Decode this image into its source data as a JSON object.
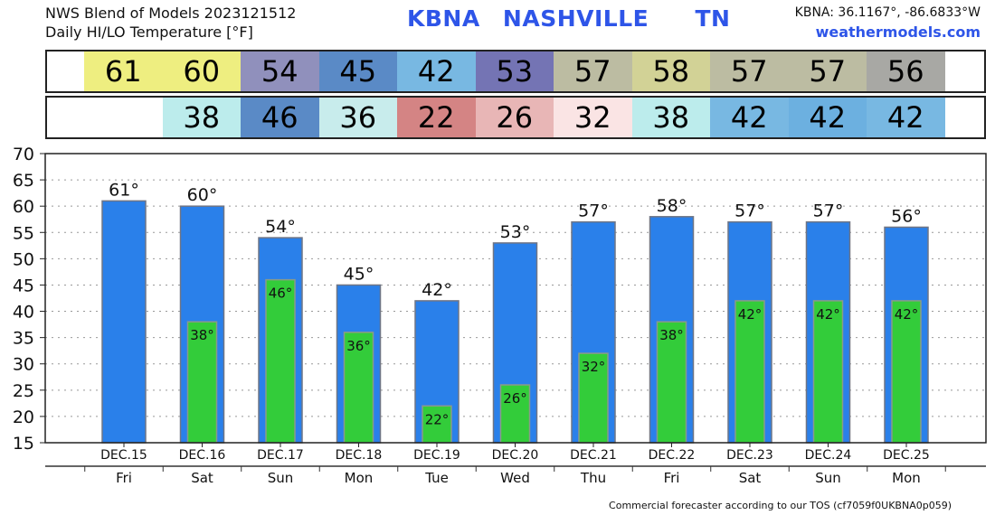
{
  "header": {
    "title_line1": "NWS Blend of Models 2023121512",
    "title_line2": "Daily HI/LO Temperature [°F]",
    "station_id": "KBNA",
    "station_name": "NASHVILLE",
    "state": "TN",
    "coords": "KBNA: 36.1167°, -86.6833°W",
    "site": "weathermodels.com"
  },
  "hi_strip": [
    {
      "value": "61",
      "color": "#eeee80"
    },
    {
      "value": "60",
      "color": "#eeee80"
    },
    {
      "value": "54",
      "color": "#9090bc"
    },
    {
      "value": "45",
      "color": "#5a8ac6"
    },
    {
      "value": "42",
      "color": "#78b8e2"
    },
    {
      "value": "53",
      "color": "#7474b4"
    },
    {
      "value": "57",
      "color": "#bcbca2"
    },
    {
      "value": "58",
      "color": "#d2d296"
    },
    {
      "value": "57",
      "color": "#bcbca2"
    },
    {
      "value": "57",
      "color": "#bcbca2"
    },
    {
      "value": "56",
      "color": "#a8a8a4"
    }
  ],
  "lo_strip": [
    {
      "value": "",
      "color": "#ffffff"
    },
    {
      "value": "38",
      "color": "#bcecec"
    },
    {
      "value": "46",
      "color": "#5a8ac6"
    },
    {
      "value": "36",
      "color": "#c8ecec"
    },
    {
      "value": "22",
      "color": "#d48484"
    },
    {
      "value": "26",
      "color": "#e8b6b6"
    },
    {
      "value": "32",
      "color": "#fae4e4"
    },
    {
      "value": "38",
      "color": "#bcecec"
    },
    {
      "value": "42",
      "color": "#78b8e2"
    },
    {
      "value": "42",
      "color": "#6cb0e0"
    },
    {
      "value": "42",
      "color": "#78b8e2"
    }
  ],
  "chart_data": {
    "type": "bar",
    "categories": [
      "DEC.15",
      "DEC.16",
      "DEC.17",
      "DEC.18",
      "DEC.19",
      "DEC.20",
      "DEC.21",
      "DEC.22",
      "DEC.23",
      "DEC.24",
      "DEC.25"
    ],
    "days": [
      "Fri",
      "Sat",
      "Sun",
      "Mon",
      "Tue",
      "Wed",
      "Thu",
      "Fri",
      "Sat",
      "Sun",
      "Mon"
    ],
    "series": [
      {
        "values": [
          61,
          60,
          54,
          45,
          42,
          53,
          57,
          58,
          57,
          57,
          56
        ],
        "color": "#2a80ea"
      },
      {
        "values": [
          null,
          38,
          46,
          36,
          22,
          26,
          32,
          38,
          42,
          42,
          42
        ],
        "color": "#33cc3a"
      }
    ],
    "hi_labels": [
      "61°",
      "60°",
      "54°",
      "45°",
      "42°",
      "53°",
      "57°",
      "58°",
      "57°",
      "57°",
      "56°"
    ],
    "lo_labels": [
      "",
      "38°",
      "46°",
      "36°",
      "22°",
      "26°",
      "32°",
      "38°",
      "42°",
      "42°",
      "42°"
    ],
    "ylim": [
      15,
      70
    ],
    "yticks": [
      15,
      20,
      25,
      30,
      35,
      40,
      45,
      50,
      55,
      60,
      65,
      70
    ],
    "grid": true
  },
  "footer": "Commercial forecaster according to our TOS (cf7059f0UKBNA0p059)"
}
